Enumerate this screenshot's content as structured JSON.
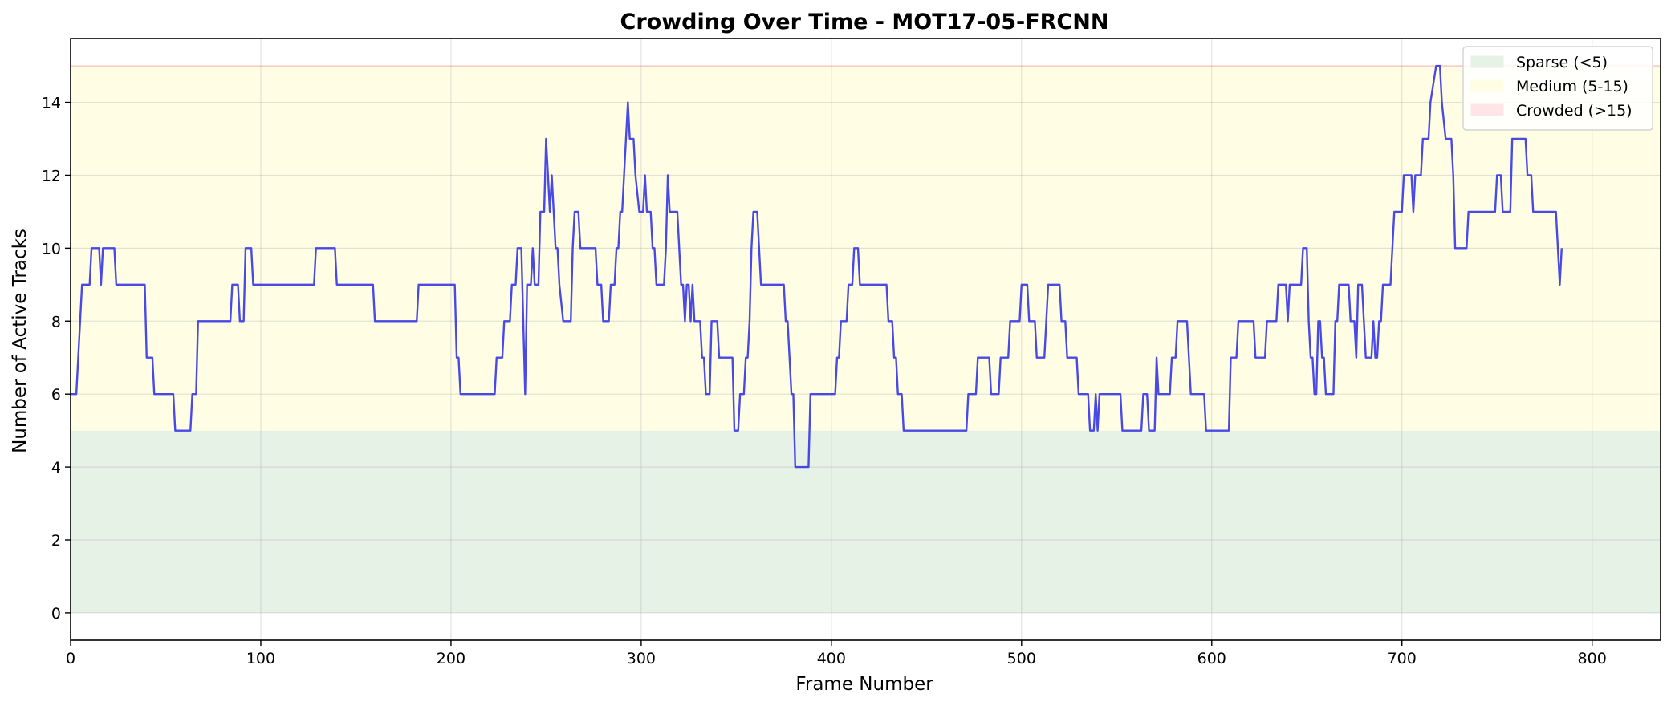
{
  "chart_data": {
    "type": "line",
    "title": "Crowding Over Time - MOT17-05-FRCNN",
    "xlabel": "Frame Number",
    "ylabel": "Number of Active Tracks",
    "xlim": [
      0,
      836
    ],
    "ylim": [
      -0.75,
      15.75
    ],
    "xticks": [
      0,
      100,
      200,
      300,
      400,
      500,
      600,
      700,
      800
    ],
    "yticks": [
      0,
      2,
      4,
      6,
      8,
      10,
      12,
      14
    ],
    "grid": true,
    "legend_position": "top-right",
    "bands": [
      {
        "name": "Sparse (<5)",
        "from": 0,
        "to": 5,
        "color": "#e5f2e5"
      },
      {
        "name": "Medium (5-15)",
        "from": 5,
        "to": 15,
        "color": "#fffee5"
      },
      {
        "name": "Crowded (>15)",
        "from": 15,
        "to": 15,
        "color": "#ffe5e5"
      }
    ],
    "series": [
      {
        "color": "#3a3ae6",
        "step_points": [
          [
            0,
            6
          ],
          [
            3,
            6
          ],
          [
            5,
            8
          ],
          [
            6,
            9
          ],
          [
            10,
            9
          ],
          [
            11,
            10
          ],
          [
            15,
            10
          ],
          [
            16,
            9
          ],
          [
            17,
            10
          ],
          [
            23,
            10
          ],
          [
            24,
            9
          ],
          [
            39,
            9
          ],
          [
            40,
            7
          ],
          [
            43,
            7
          ],
          [
            44,
            6
          ],
          [
            54,
            6
          ],
          [
            55,
            5
          ],
          [
            63,
            5
          ],
          [
            64,
            6
          ],
          [
            66,
            6
          ],
          [
            67,
            8
          ],
          [
            84,
            8
          ],
          [
            85,
            9
          ],
          [
            88,
            9
          ],
          [
            89,
            8
          ],
          [
            91,
            8
          ],
          [
            92,
            10
          ],
          [
            95,
            10
          ],
          [
            96,
            9
          ],
          [
            128,
            9
          ],
          [
            129,
            10
          ],
          [
            139,
            10
          ],
          [
            140,
            9
          ],
          [
            159,
            9
          ],
          [
            160,
            8
          ],
          [
            182,
            8
          ],
          [
            183,
            9
          ],
          [
            202,
            9
          ],
          [
            203,
            7
          ],
          [
            204,
            7
          ],
          [
            205,
            6
          ],
          [
            223,
            6
          ],
          [
            224,
            7
          ],
          [
            227,
            7
          ],
          [
            228,
            8
          ],
          [
            231,
            8
          ],
          [
            232,
            9
          ],
          [
            234,
            9
          ],
          [
            235,
            10
          ],
          [
            237,
            10
          ],
          [
            239,
            6
          ],
          [
            240,
            9
          ],
          [
            242,
            9
          ],
          [
            243,
            10
          ],
          [
            244,
            9
          ],
          [
            246,
            9
          ],
          [
            247,
            11
          ],
          [
            249,
            11
          ],
          [
            250,
            13
          ],
          [
            251,
            12
          ],
          [
            252,
            11
          ],
          [
            253,
            12
          ],
          [
            254,
            11
          ],
          [
            255,
            10
          ],
          [
            256,
            10
          ],
          [
            257,
            9
          ],
          [
            259,
            8
          ],
          [
            263,
            8
          ],
          [
            264,
            10
          ],
          [
            265,
            11
          ],
          [
            267,
            11
          ],
          [
            268,
            10
          ],
          [
            276,
            10
          ],
          [
            277,
            9
          ],
          [
            279,
            9
          ],
          [
            280,
            8
          ],
          [
            283,
            8
          ],
          [
            284,
            9
          ],
          [
            286,
            9
          ],
          [
            287,
            10
          ],
          [
            288,
            10
          ],
          [
            289,
            11
          ],
          [
            290,
            11
          ],
          [
            291,
            12
          ],
          [
            293,
            14
          ],
          [
            294,
            13
          ],
          [
            296,
            13
          ],
          [
            297,
            12
          ],
          [
            299,
            11
          ],
          [
            301,
            11
          ],
          [
            302,
            12
          ],
          [
            303,
            11
          ],
          [
            305,
            11
          ],
          [
            306,
            10
          ],
          [
            307,
            10
          ],
          [
            308,
            9
          ],
          [
            312,
            9
          ],
          [
            313,
            10
          ],
          [
            314,
            12
          ],
          [
            315,
            11
          ],
          [
            319,
            11
          ],
          [
            320,
            10
          ],
          [
            321,
            9
          ],
          [
            322,
            9
          ],
          [
            323,
            8
          ],
          [
            324,
            9
          ],
          [
            325,
            9
          ],
          [
            326,
            8
          ],
          [
            327,
            9
          ],
          [
            328,
            8
          ],
          [
            331,
            8
          ],
          [
            332,
            7
          ],
          [
            333,
            7
          ],
          [
            334,
            6
          ],
          [
            336,
            6
          ],
          [
            337,
            8
          ],
          [
            340,
            8
          ],
          [
            341,
            7
          ],
          [
            348,
            7
          ],
          [
            349,
            5
          ],
          [
            351,
            5
          ],
          [
            352,
            6
          ],
          [
            354,
            6
          ],
          [
            355,
            7
          ],
          [
            356,
            7
          ],
          [
            357,
            8
          ],
          [
            358,
            10
          ],
          [
            359,
            11
          ],
          [
            361,
            11
          ],
          [
            362,
            10
          ],
          [
            363,
            9
          ],
          [
            375,
            9
          ],
          [
            376,
            8
          ],
          [
            377,
            8
          ],
          [
            378,
            7
          ],
          [
            379,
            6
          ],
          [
            380,
            6
          ],
          [
            381,
            4
          ],
          [
            388,
            4
          ],
          [
            389,
            6
          ],
          [
            402,
            6
          ],
          [
            403,
            7
          ],
          [
            404,
            7
          ],
          [
            405,
            8
          ],
          [
            408,
            8
          ],
          [
            409,
            9
          ],
          [
            411,
            9
          ],
          [
            412,
            10
          ],
          [
            414,
            10
          ],
          [
            415,
            9
          ],
          [
            429,
            9
          ],
          [
            430,
            8
          ],
          [
            432,
            8
          ],
          [
            433,
            7
          ],
          [
            434,
            7
          ],
          [
            435,
            6
          ],
          [
            437,
            6
          ],
          [
            438,
            5
          ],
          [
            471,
            5
          ],
          [
            472,
            6
          ],
          [
            476,
            6
          ],
          [
            477,
            7
          ],
          [
            483,
            7
          ],
          [
            484,
            6
          ],
          [
            488,
            6
          ],
          [
            489,
            7
          ],
          [
            493,
            7
          ],
          [
            494,
            8
          ],
          [
            499,
            8
          ],
          [
            500,
            9
          ],
          [
            503,
            9
          ],
          [
            504,
            8
          ],
          [
            507,
            8
          ],
          [
            508,
            7
          ],
          [
            512,
            7
          ],
          [
            513,
            8
          ],
          [
            514,
            9
          ],
          [
            520,
            9
          ],
          [
            521,
            8
          ],
          [
            523,
            8
          ],
          [
            524,
            7
          ],
          [
            529,
            7
          ],
          [
            530,
            6
          ],
          [
            535,
            6
          ],
          [
            536,
            5
          ],
          [
            538,
            5
          ],
          [
            539,
            6
          ],
          [
            540,
            5
          ],
          [
            541,
            6
          ],
          [
            552,
            6
          ],
          [
            553,
            5
          ],
          [
            563,
            5
          ],
          [
            564,
            6
          ],
          [
            566,
            6
          ],
          [
            567,
            5
          ],
          [
            570,
            5
          ],
          [
            571,
            7
          ],
          [
            572,
            6
          ],
          [
            578,
            6
          ],
          [
            579,
            7
          ],
          [
            581,
            7
          ],
          [
            582,
            8
          ],
          [
            587,
            8
          ],
          [
            588,
            7
          ],
          [
            589,
            6
          ],
          [
            596,
            6
          ],
          [
            597,
            5
          ],
          [
            609,
            5
          ],
          [
            610,
            7
          ],
          [
            613,
            7
          ],
          [
            614,
            8
          ],
          [
            622,
            8
          ],
          [
            623,
            7
          ],
          [
            628,
            7
          ],
          [
            629,
            8
          ],
          [
            634,
            8
          ],
          [
            635,
            9
          ],
          [
            639,
            9
          ],
          [
            640,
            8
          ],
          [
            641,
            9
          ],
          [
            647,
            9
          ],
          [
            648,
            10
          ],
          [
            650,
            10
          ],
          [
            651,
            8
          ],
          [
            652,
            7
          ],
          [
            653,
            7
          ],
          [
            654,
            6
          ],
          [
            655,
            6
          ],
          [
            656,
            8
          ],
          [
            657,
            8
          ],
          [
            658,
            7
          ],
          [
            659,
            7
          ],
          [
            660,
            6
          ],
          [
            664,
            6
          ],
          [
            665,
            8
          ],
          [
            666,
            8
          ],
          [
            667,
            9
          ],
          [
            672,
            9
          ],
          [
            673,
            8
          ],
          [
            675,
            8
          ],
          [
            676,
            7
          ],
          [
            677,
            9
          ],
          [
            679,
            9
          ],
          [
            680,
            8
          ],
          [
            681,
            7
          ],
          [
            684,
            7
          ],
          [
            685,
            8
          ],
          [
            686,
            7
          ],
          [
            687,
            7
          ],
          [
            688,
            8
          ],
          [
            689,
            8
          ],
          [
            690,
            9
          ],
          [
            694,
            9
          ],
          [
            695,
            10
          ],
          [
            696,
            11
          ],
          [
            700,
            11
          ],
          [
            701,
            12
          ],
          [
            705,
            12
          ],
          [
            706,
            11
          ],
          [
            707,
            12
          ],
          [
            710,
            12
          ],
          [
            711,
            13
          ],
          [
            714,
            13
          ],
          [
            715,
            14
          ],
          [
            718,
            15
          ],
          [
            720,
            15
          ],
          [
            721,
            14
          ],
          [
            723,
            13
          ],
          [
            726,
            13
          ],
          [
            727,
            12
          ],
          [
            728,
            10
          ],
          [
            734,
            10
          ],
          [
            735,
            11
          ],
          [
            749,
            11
          ],
          [
            750,
            12
          ],
          [
            752,
            12
          ],
          [
            753,
            11
          ],
          [
            757,
            11
          ],
          [
            758,
            13
          ],
          [
            765,
            13
          ],
          [
            766,
            12
          ],
          [
            768,
            12
          ],
          [
            769,
            11
          ],
          [
            781,
            11
          ],
          [
            783,
            9
          ],
          [
            784,
            10
          ]
        ]
      }
    ]
  }
}
